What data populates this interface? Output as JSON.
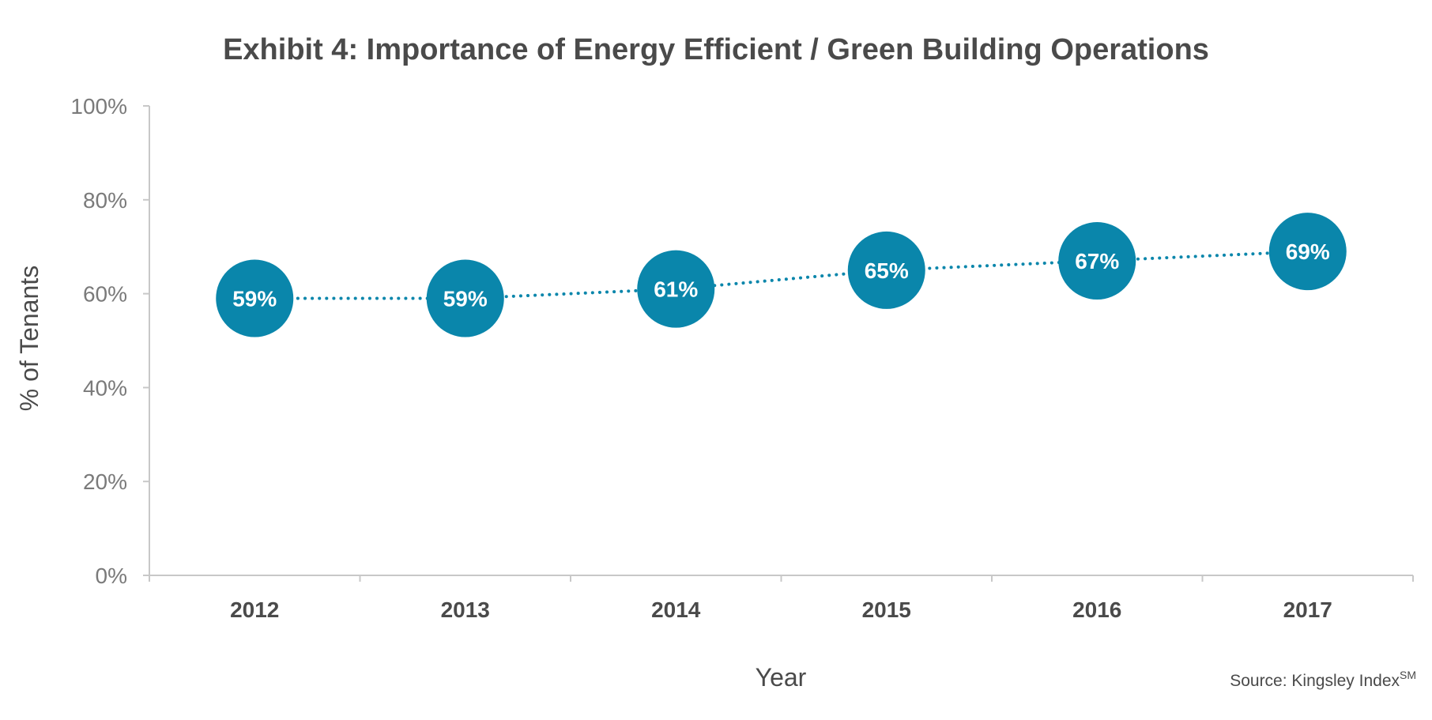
{
  "chart_data": {
    "type": "line",
    "title": "Exhibit 4: Importance of Energy Efficient / Green Building Operations",
    "xlabel": "Year",
    "ylabel": "% of Tenants",
    "categories": [
      "2012",
      "2013",
      "2014",
      "2015",
      "2016",
      "2017"
    ],
    "series": [
      {
        "values": [
          59,
          59,
          61,
          65,
          67,
          69
        ],
        "labels": [
          "59%",
          "59%",
          "61%",
          "65%",
          "67%",
          "69%"
        ]
      }
    ],
    "ylim": [
      0,
      100
    ],
    "yticks": [
      0,
      20,
      40,
      60,
      80,
      100
    ],
    "ytick_labels": [
      "0%",
      "20%",
      "40%",
      "60%",
      "80%",
      "100%"
    ],
    "grid": false,
    "legend": "none",
    "line_style": "dotted",
    "marker": "filled-circle",
    "colors": {
      "series": "#0a86ab",
      "axis": "#c8c8c8",
      "title": "#4a4a4a",
      "tick_text": "#7a7a7a"
    },
    "source": {
      "text": "Source: Kingsley Index",
      "superscript": "SM"
    }
  }
}
